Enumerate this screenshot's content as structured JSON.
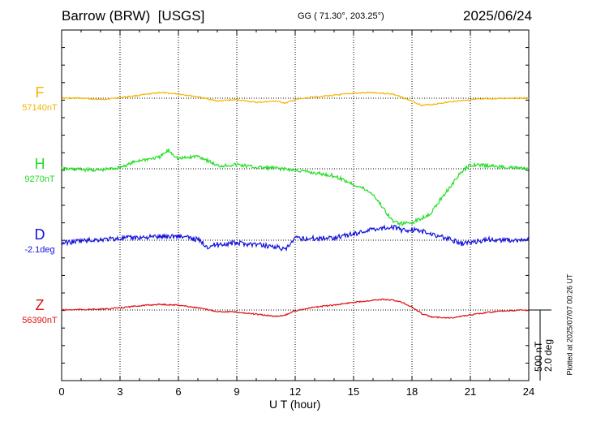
{
  "header": {
    "station": "Barrow (BRW)",
    "source": "[USGS]",
    "coords": "GG ( 71.30°, 203.25°)",
    "date": "2025/06/24"
  },
  "scale_label": "500 nT\n2.0 deg",
  "scale_line1": "500 nT",
  "scale_line2": "2.0 deg",
  "plotted": "Plotted at 2025/07/07 00:26 UT",
  "colors": {
    "F": "#f5b400",
    "H": "#22dd22",
    "D": "#1111dd",
    "Z": "#dd1111"
  },
  "chart_data": {
    "type": "line",
    "title": "Barrow (BRW)  [USGS]",
    "xlabel": "U T (hour)",
    "ylabel": "",
    "xlim": [
      0,
      24
    ],
    "xticks": [
      "0",
      "3",
      "6",
      "9",
      "12",
      "15",
      "18",
      "21",
      "24"
    ],
    "grid": true,
    "scale_bar": "500 nT / 2.0 deg",
    "series": [
      {
        "name": "F",
        "baseline_label": "57140nT",
        "unit": "nT",
        "baseline": 57140,
        "x": [
          0,
          1,
          2,
          3,
          4,
          5,
          5.5,
          6,
          7,
          8,
          9,
          10,
          11,
          11.5,
          12,
          13,
          14,
          15,
          16,
          17,
          18,
          18.5,
          19,
          20,
          21,
          22,
          23,
          24
        ],
        "y": [
          57140,
          57140,
          57130,
          57145,
          57160,
          57180,
          57175,
          57170,
          57150,
          57120,
          57130,
          57110,
          57120,
          57105,
          57130,
          57150,
          57160,
          57175,
          57180,
          57170,
          57120,
          57090,
          57095,
          57115,
          57130,
          57135,
          57140,
          57140
        ]
      },
      {
        "name": "H",
        "baseline_label": "9270nT",
        "unit": "nT",
        "baseline": 9270,
        "x": [
          0,
          1,
          2,
          3,
          4,
          5,
          5.5,
          6,
          7,
          7.5,
          8,
          9,
          10,
          11,
          12,
          13,
          14,
          15,
          15.5,
          16,
          17,
          17.5,
          18,
          18.5,
          19,
          19.5,
          20,
          20.5,
          21,
          22,
          23,
          24
        ],
        "y": [
          9270,
          9265,
          9260,
          9280,
          9330,
          9350,
          9400,
          9340,
          9360,
          9330,
          9290,
          9300,
          9280,
          9275,
          9260,
          9240,
          9220,
          9160,
          9130,
          9090,
          8900,
          8880,
          8890,
          8920,
          8960,
          9060,
          9150,
          9240,
          9300,
          9290,
          9280,
          9270
        ]
      },
      {
        "name": "D",
        "baseline_label": "-2.1deg",
        "unit": "deg",
        "baseline": -2.1,
        "x": [
          0,
          1,
          2,
          3,
          4,
          5,
          6,
          7,
          7.5,
          8,
          9,
          10,
          11,
          11.5,
          12,
          13,
          14,
          15,
          16,
          17,
          17.5,
          18,
          18.5,
          19,
          19.5,
          20,
          20.5,
          21,
          22,
          23,
          24
        ],
        "y": [
          -2.18,
          -2.12,
          -2.08,
          -2.05,
          -2.02,
          -2.0,
          -1.98,
          -2.08,
          -2.28,
          -2.22,
          -2.18,
          -2.22,
          -2.28,
          -2.38,
          -2.05,
          -2.05,
          -2.02,
          -1.92,
          -1.78,
          -1.72,
          -1.82,
          -1.8,
          -1.85,
          -1.92,
          -2.0,
          -2.08,
          -2.2,
          -2.16,
          -2.08,
          -2.1,
          -2.1
        ]
      },
      {
        "name": "Z",
        "baseline_label": "56390nT",
        "unit": "nT",
        "baseline": 56390,
        "x": [
          0,
          1,
          2,
          3,
          4,
          5,
          6,
          7,
          8,
          9,
          10,
          11,
          11.5,
          12,
          13,
          14,
          15,
          16,
          16.5,
          17,
          17.5,
          18,
          18.5,
          19,
          20,
          21,
          22,
          23,
          24
        ],
        "y": [
          56390,
          56393,
          56395,
          56405,
          56420,
          56430,
          56425,
          56405,
          56380,
          56375,
          56360,
          56345,
          56355,
          56385,
          56410,
          56425,
          56445,
          56460,
          56465,
          56460,
          56445,
          56410,
          56365,
          56340,
          56335,
          56355,
          56375,
          56385,
          56390
        ]
      }
    ]
  }
}
